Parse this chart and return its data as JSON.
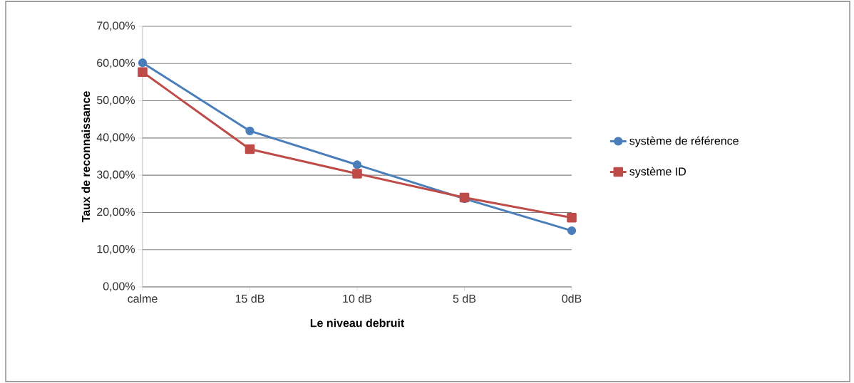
{
  "chart_data": {
    "type": "line",
    "xlabel": "Le niveau debruit",
    "ylabel": "Taux de reconnaissance",
    "categories": [
      "calme",
      "15 dB",
      "10 dB",
      "5 dB",
      "0dB"
    ],
    "series": [
      {
        "name": "système de référence",
        "color": "#4a7ebb",
        "marker": "circle",
        "values": [
          60.2,
          41.9,
          32.8,
          23.7,
          15.1
        ]
      },
      {
        "name": "système ID",
        "color": "#be4b48",
        "marker": "square",
        "values": [
          57.7,
          37.0,
          30.4,
          24.0,
          18.6
        ]
      }
    ],
    "ylim": [
      0,
      70
    ],
    "yticks": [
      {
        "value": 0,
        "label": "0,00%"
      },
      {
        "value": 10,
        "label": "10,00%"
      },
      {
        "value": 20,
        "label": "20,00%"
      },
      {
        "value": 30,
        "label": "30,00%"
      },
      {
        "value": 40,
        "label": "40,00%"
      },
      {
        "value": 50,
        "label": "50,00%"
      },
      {
        "value": 60,
        "label": "60,00%"
      },
      {
        "value": 70,
        "label": "70,00%"
      }
    ],
    "grid": "y",
    "legend": "right",
    "line_style": "solid"
  }
}
